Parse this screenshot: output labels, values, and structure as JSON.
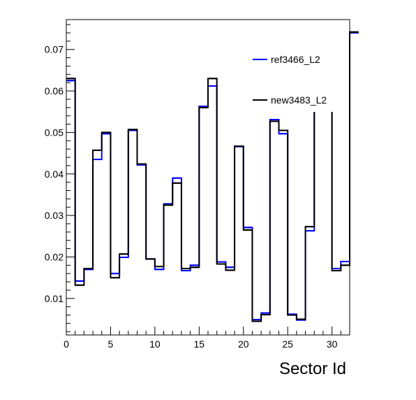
{
  "chart_data": {
    "type": "step-histogram",
    "xlabel": "Sector Id",
    "ylabel": "",
    "xlim": [
      0,
      32
    ],
    "ylim": [
      0.0012,
      0.0772
    ],
    "x_ticks": [
      0,
      5,
      10,
      15,
      20,
      25,
      30
    ],
    "y_ticks": [
      0.01,
      0.02,
      0.03,
      0.04,
      0.05,
      0.06,
      0.07
    ],
    "y_tick_labels": [
      "0.01",
      "0.02",
      "0.03",
      "0.04",
      "0.05",
      "0.06",
      "0.07"
    ],
    "grid": false,
    "legend_position": "top-right",
    "series": [
      {
        "name": "ref3466_L2",
        "color": "#0000ff",
        "values": [
          0.0625,
          0.0142,
          0.017,
          0.0435,
          0.0497,
          0.016,
          0.0199,
          0.0505,
          0.0422,
          0.0195,
          0.017,
          0.0328,
          0.039,
          0.0167,
          0.018,
          0.0563,
          0.0612,
          0.0188,
          0.0175,
          0.0466,
          0.0271,
          0.0049,
          0.0065,
          0.0531,
          0.0497,
          0.0062,
          0.0048,
          0.0263,
          0.06,
          0.06,
          0.0172,
          0.0189,
          0.074
        ]
      },
      {
        "name": "new3483_L2",
        "color": "#000000",
        "values": [
          0.063,
          0.0132,
          0.0172,
          0.0457,
          0.05,
          0.015,
          0.0207,
          0.0507,
          0.0424,
          0.0195,
          0.0177,
          0.0325,
          0.0378,
          0.0172,
          0.0175,
          0.056,
          0.063,
          0.0183,
          0.0168,
          0.0467,
          0.0265,
          0.0045,
          0.0061,
          0.0527,
          0.0505,
          0.006,
          0.005,
          0.0273,
          0.06,
          0.06,
          0.0167,
          0.018,
          0.0742
        ]
      }
    ]
  }
}
